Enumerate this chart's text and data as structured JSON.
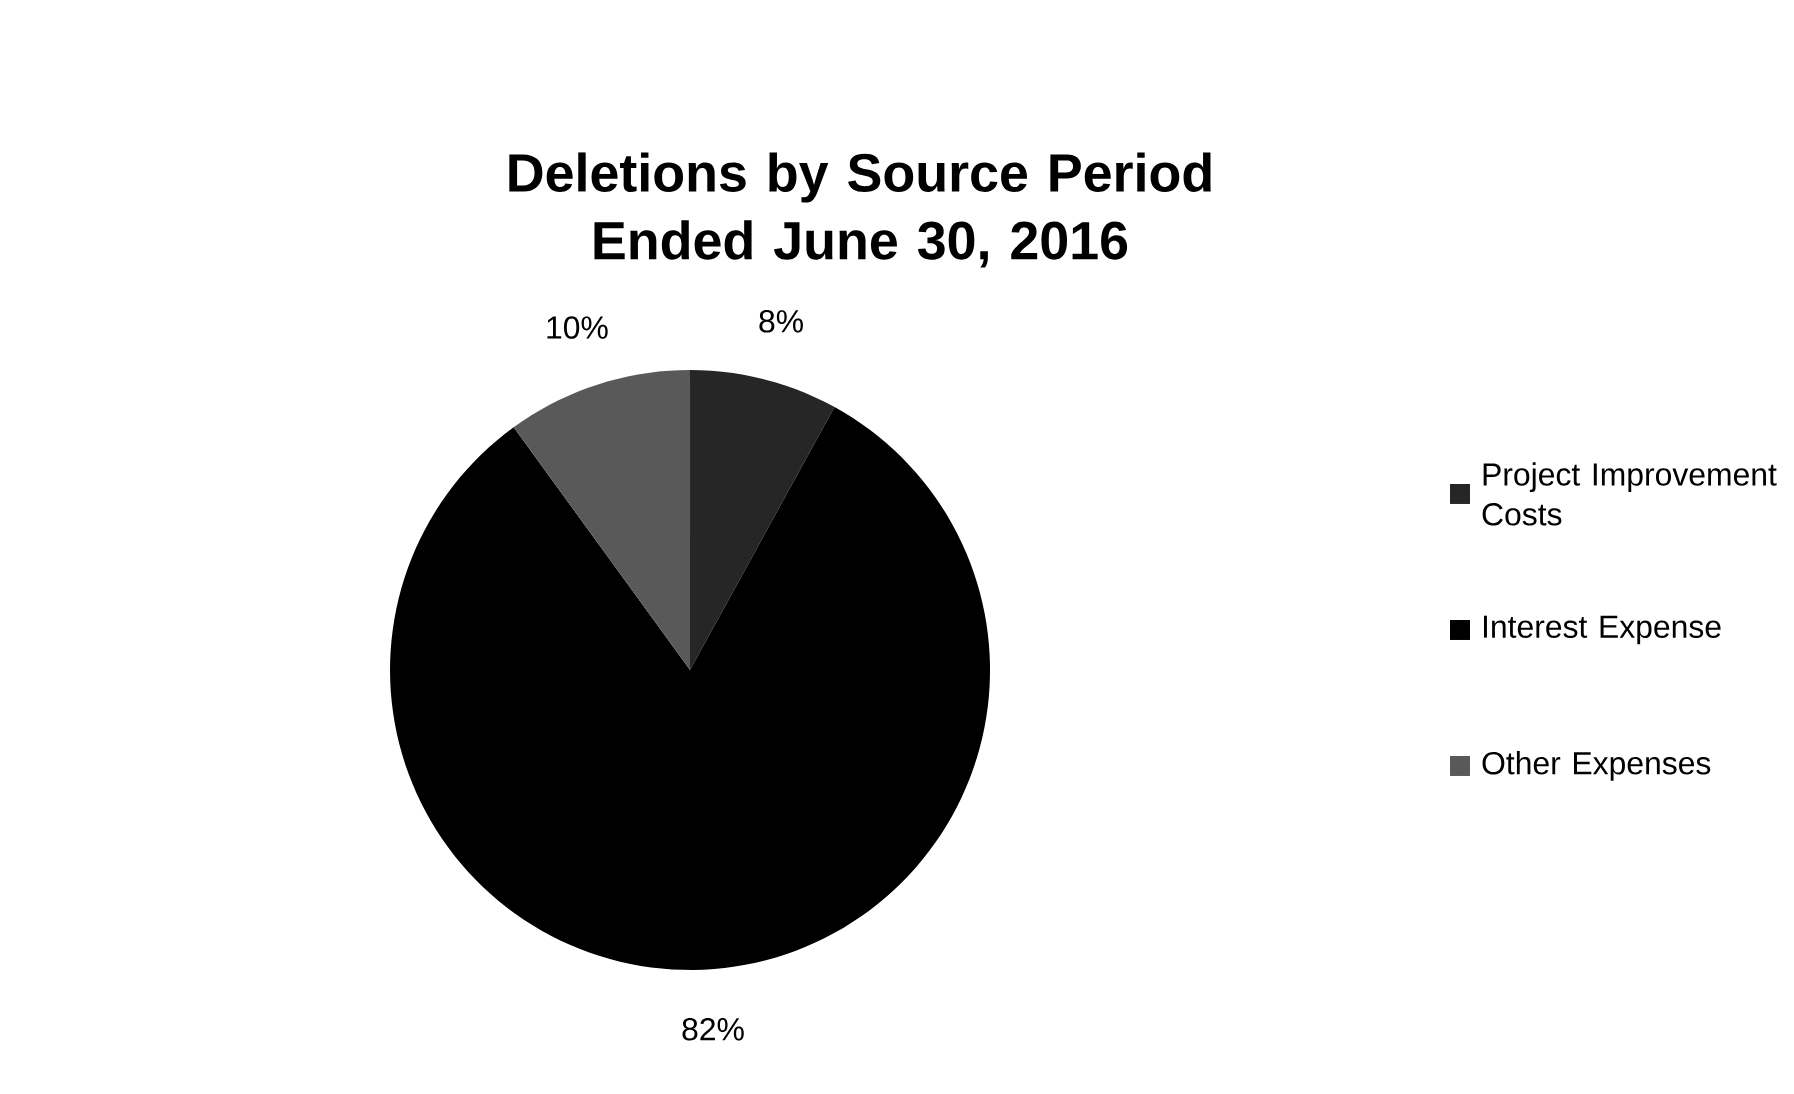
{
  "chart_data": {
    "type": "pie",
    "title": "Deletions by Source Period Ended June 30, 2016",
    "categories": [
      "Project Improvement Costs",
      "Interest Expense",
      "Other Expenses"
    ],
    "values": [
      8,
      82,
      10
    ],
    "colors": [
      "#262626",
      "#000000",
      "#595959"
    ],
    "value_labels": [
      "8%",
      "82%",
      "10%"
    ],
    "legend": "right"
  }
}
